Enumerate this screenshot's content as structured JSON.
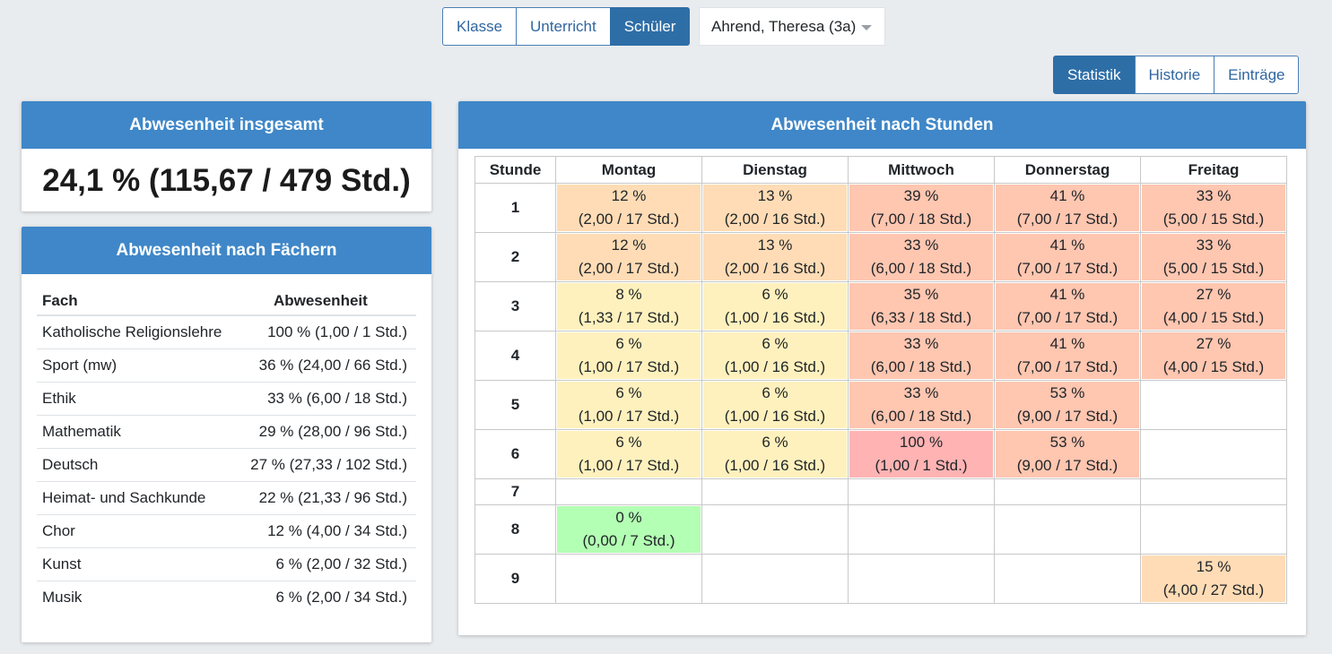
{
  "view_tabs": [
    {
      "label": "Klasse",
      "active": false
    },
    {
      "label": "Unterricht",
      "active": false
    },
    {
      "label": "Schüler",
      "active": true
    }
  ],
  "student_select": {
    "value": "Ahrend, Theresa (3a)"
  },
  "stat_tabs": [
    {
      "label": "Statistik",
      "active": true
    },
    {
      "label": "Historie",
      "active": false
    },
    {
      "label": "Einträge",
      "active": false
    }
  ],
  "total": {
    "title": "Abwesenheit insgesamt",
    "value": "24,1 % (115,67 / 479 Std.)"
  },
  "subjects": {
    "title": "Abwesenheit nach Fächern",
    "headers": {
      "subject": "Fach",
      "absence": "Abwesenheit"
    },
    "rows": [
      {
        "subject": "Katholische Religionslehre",
        "absence": "100 % (1,00 / 1 Std.)"
      },
      {
        "subject": "Sport (mw)",
        "absence": "36 % (24,00 / 66 Std.)"
      },
      {
        "subject": "Ethik",
        "absence": "33 % (6,00 / 18 Std.)"
      },
      {
        "subject": "Mathematik",
        "absence": "29 % (28,00 / 96 Std.)"
      },
      {
        "subject": "Deutsch",
        "absence": "27 % (27,33 / 102 Std.)"
      },
      {
        "subject": "Heimat- und Sachkunde",
        "absence": "22 % (21,33 / 96 Std.)"
      },
      {
        "subject": "Chor",
        "absence": "12 % (4,00 / 34 Std.)"
      },
      {
        "subject": "Kunst",
        "absence": "6 % (2,00 / 32 Std.)"
      },
      {
        "subject": "Musik",
        "absence": "6 % (2,00 / 34 Std.)"
      }
    ]
  },
  "hours": {
    "title": "Abwesenheit nach Stunden",
    "hour_header": "Stunde",
    "days": [
      "Montag",
      "Dienstag",
      "Mittwoch",
      "Donnerstag",
      "Freitag"
    ],
    "colors": {
      "green": "#b3ffb3",
      "yellow": "#fff1bd",
      "orange": "#ffdcb5",
      "salmon": "#ffc6b0",
      "red": "#ffb3b3"
    },
    "rows": [
      {
        "hour": "1",
        "cells": [
          {
            "pct": "12 %",
            "detail": "(2,00 / 17 Std.)",
            "color": "orange"
          },
          {
            "pct": "13 %",
            "detail": "(2,00 / 16 Std.)",
            "color": "orange"
          },
          {
            "pct": "39 %",
            "detail": "(7,00 / 18 Std.)",
            "color": "salmon"
          },
          {
            "pct": "41 %",
            "detail": "(7,00 / 17 Std.)",
            "color": "salmon"
          },
          {
            "pct": "33 %",
            "detail": "(5,00 / 15 Std.)",
            "color": "salmon"
          }
        ]
      },
      {
        "hour": "2",
        "cells": [
          {
            "pct": "12 %",
            "detail": "(2,00 / 17 Std.)",
            "color": "orange"
          },
          {
            "pct": "13 %",
            "detail": "(2,00 / 16 Std.)",
            "color": "orange"
          },
          {
            "pct": "33 %",
            "detail": "(6,00 / 18 Std.)",
            "color": "salmon"
          },
          {
            "pct": "41 %",
            "detail": "(7,00 / 17 Std.)",
            "color": "salmon"
          },
          {
            "pct": "33 %",
            "detail": "(5,00 / 15 Std.)",
            "color": "salmon"
          }
        ]
      },
      {
        "hour": "3",
        "cells": [
          {
            "pct": "8 %",
            "detail": "(1,33 / 17 Std.)",
            "color": "yellow"
          },
          {
            "pct": "6 %",
            "detail": "(1,00 / 16 Std.)",
            "color": "yellow"
          },
          {
            "pct": "35 %",
            "detail": "(6,33 / 18 Std.)",
            "color": "salmon"
          },
          {
            "pct": "41 %",
            "detail": "(7,00 / 17 Std.)",
            "color": "salmon"
          },
          {
            "pct": "27 %",
            "detail": "(4,00 / 15 Std.)",
            "color": "salmon"
          }
        ]
      },
      {
        "hour": "4",
        "cells": [
          {
            "pct": "6 %",
            "detail": "(1,00 / 17 Std.)",
            "color": "yellow"
          },
          {
            "pct": "6 %",
            "detail": "(1,00 / 16 Std.)",
            "color": "yellow"
          },
          {
            "pct": "33 %",
            "detail": "(6,00 / 18 Std.)",
            "color": "salmon"
          },
          {
            "pct": "41 %",
            "detail": "(7,00 / 17 Std.)",
            "color": "salmon"
          },
          {
            "pct": "27 %",
            "detail": "(4,00 / 15 Std.)",
            "color": "salmon"
          }
        ]
      },
      {
        "hour": "5",
        "cells": [
          {
            "pct": "6 %",
            "detail": "(1,00 / 17 Std.)",
            "color": "yellow"
          },
          {
            "pct": "6 %",
            "detail": "(1,00 / 16 Std.)",
            "color": "yellow"
          },
          {
            "pct": "33 %",
            "detail": "(6,00 / 18 Std.)",
            "color": "salmon"
          },
          {
            "pct": "53 %",
            "detail": "(9,00 / 17 Std.)",
            "color": "salmon"
          },
          null
        ]
      },
      {
        "hour": "6",
        "cells": [
          {
            "pct": "6 %",
            "detail": "(1,00 / 17 Std.)",
            "color": "yellow"
          },
          {
            "pct": "6 %",
            "detail": "(1,00 / 16 Std.)",
            "color": "yellow"
          },
          {
            "pct": "100 %",
            "detail": "(1,00 / 1 Std.)",
            "color": "red"
          },
          {
            "pct": "53 %",
            "detail": "(9,00 / 17 Std.)",
            "color": "salmon"
          },
          null
        ]
      },
      {
        "hour": "7",
        "cells": [
          null,
          null,
          null,
          null,
          null
        ]
      },
      {
        "hour": "8",
        "cells": [
          {
            "pct": "0 %",
            "detail": "(0,00 / 7 Std.)",
            "color": "green"
          },
          null,
          null,
          null,
          null
        ]
      },
      {
        "hour": "9",
        "cells": [
          null,
          null,
          null,
          null,
          {
            "pct": "15 %",
            "detail": "(4,00 / 27 Std.)",
            "color": "orange"
          }
        ]
      }
    ]
  }
}
